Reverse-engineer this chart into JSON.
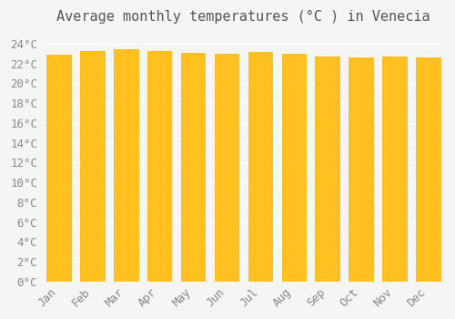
{
  "title": "Average monthly temperatures (°C ) in Venecia",
  "months": [
    "Jan",
    "Feb",
    "Mar",
    "Apr",
    "May",
    "Jun",
    "Jul",
    "Aug",
    "Sep",
    "Oct",
    "Nov",
    "Dec"
  ],
  "values": [
    22.9,
    23.3,
    23.4,
    23.3,
    23.1,
    23.0,
    23.2,
    23.0,
    22.7,
    22.6,
    22.7,
    22.6
  ],
  "bar_color_top": "#FFC020",
  "bar_color_bottom": "#FFB000",
  "ylim": [
    0,
    25
  ],
  "ytick_interval": 2,
  "background_color": "#F5F5F5",
  "grid_color": "#FFFFFF",
  "title_fontsize": 11,
  "tick_fontsize": 9,
  "font_family": "monospace"
}
